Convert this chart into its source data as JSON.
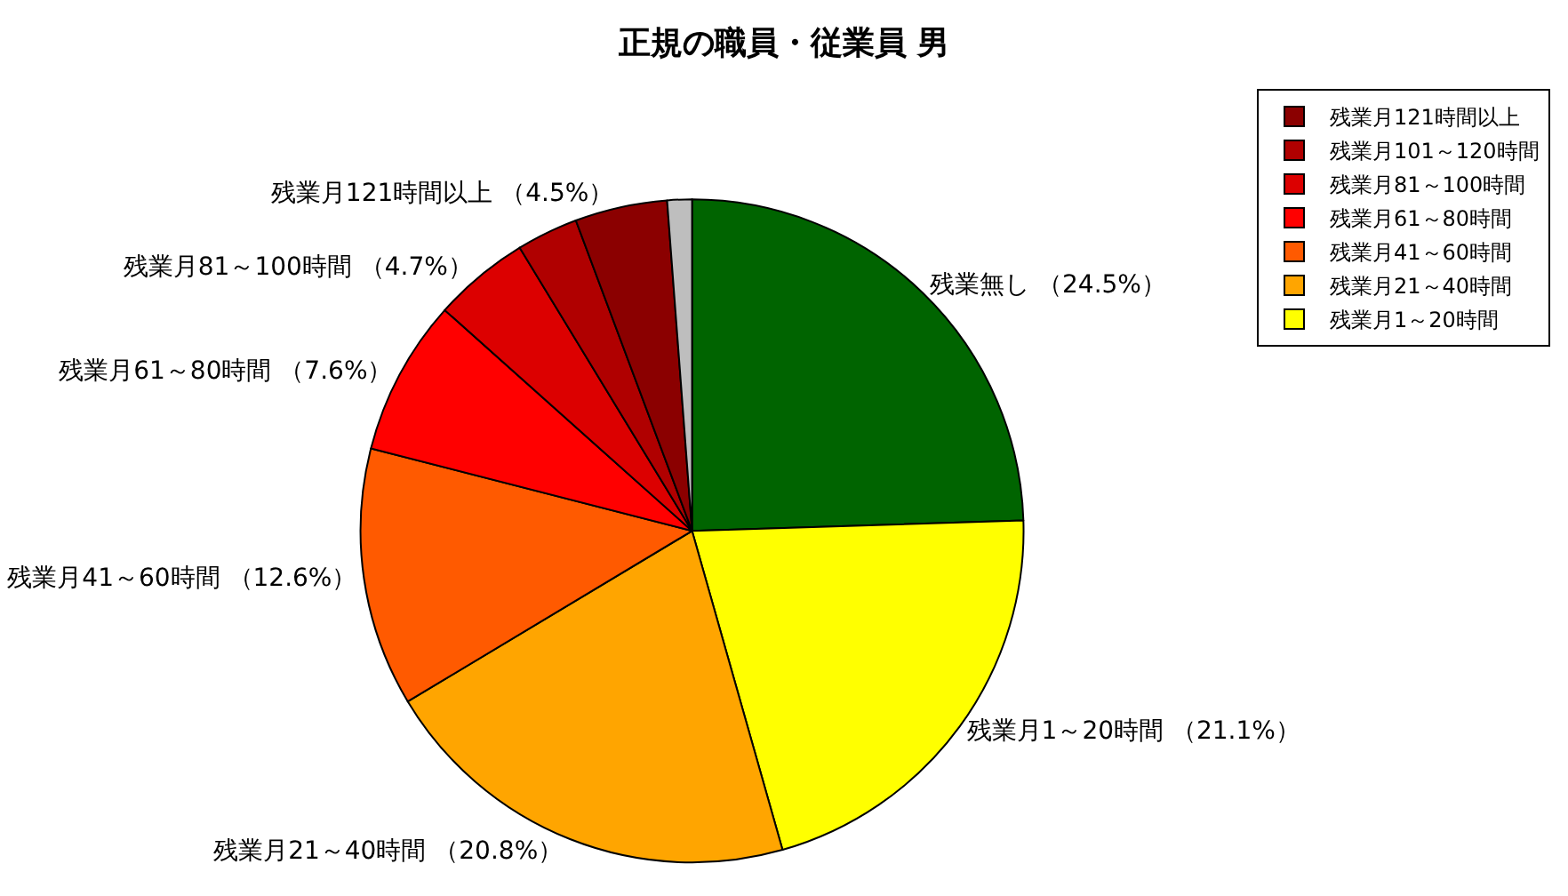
{
  "chart_data": {
    "type": "pie",
    "title": "正規の職員・従業員 男",
    "categories": [
      "残業無し",
      "残業月1～20時間",
      "残業月21～40時間",
      "残業月41～60時間",
      "残業月61～80時間",
      "残業月81～100時間",
      "残業月101～120時間",
      "残業月121時間以上",
      null
    ],
    "values": [
      24.5,
      21.1,
      20.8,
      12.6,
      7.6,
      4.7,
      3.0,
      4.5,
      1.2
    ],
    "colors": [
      "#006400",
      "#ffff00",
      "#ffa500",
      "#ff5a00",
      "#ff0000",
      "#dc0000",
      "#b00000",
      "#8b0000",
      "#bebebe"
    ],
    "value_labels": [
      "（24.5%）",
      "（21.1%）",
      "（20.8%）",
      "（12.6%）",
      "（7.6%）",
      "（4.7%）",
      null,
      "（4.5%）",
      null
    ],
    "legend": "top right"
  }
}
